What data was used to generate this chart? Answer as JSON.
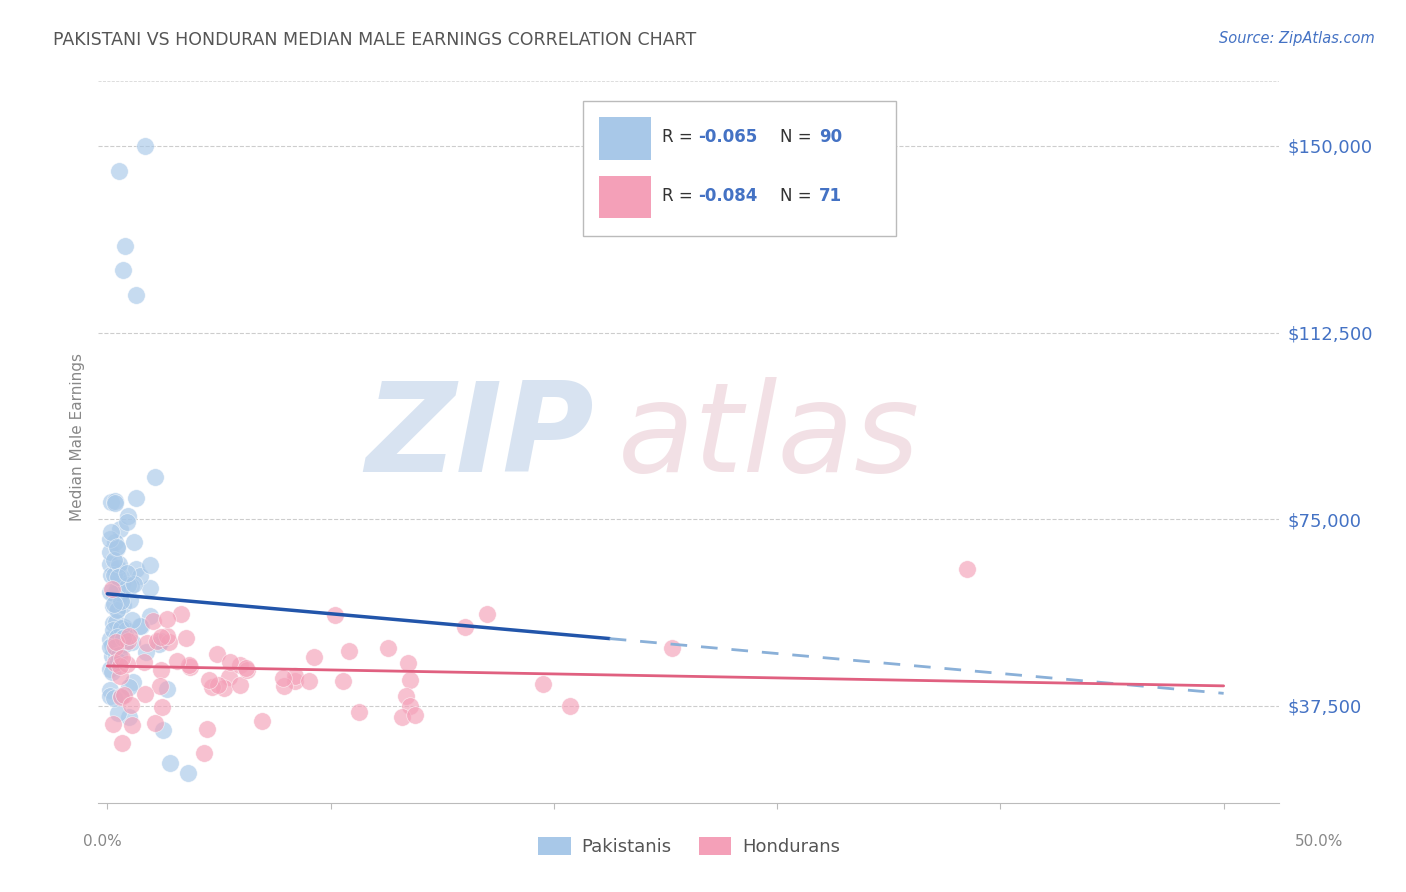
{
  "title": "PAKISTANI VS HONDURAN MEDIAN MALE EARNINGS CORRELATION CHART",
  "source": "Source: ZipAtlas.com",
  "ylabel": "Median Male Earnings",
  "ytick_labels": [
    "$37,500",
    "$75,000",
    "$112,500",
    "$150,000"
  ],
  "ytick_values": [
    37500,
    75000,
    112500,
    150000
  ],
  "ymin": 18000,
  "ymax": 165000,
  "xmin": -0.004,
  "xmax": 0.525,
  "pak_color": "#a8c8e8",
  "hon_color": "#f4a0b8",
  "pak_line_color": "#2255aa",
  "hon_line_color": "#e06080",
  "pak_dash_color": "#8ab0d8",
  "background_color": "#ffffff",
  "grid_color": "#c8c8c8",
  "title_color": "#555555",
  "axis_label_color": "#888888",
  "ytick_color": "#4472c4",
  "source_color": "#4472c4",
  "legend_box_color": "#dddddd"
}
